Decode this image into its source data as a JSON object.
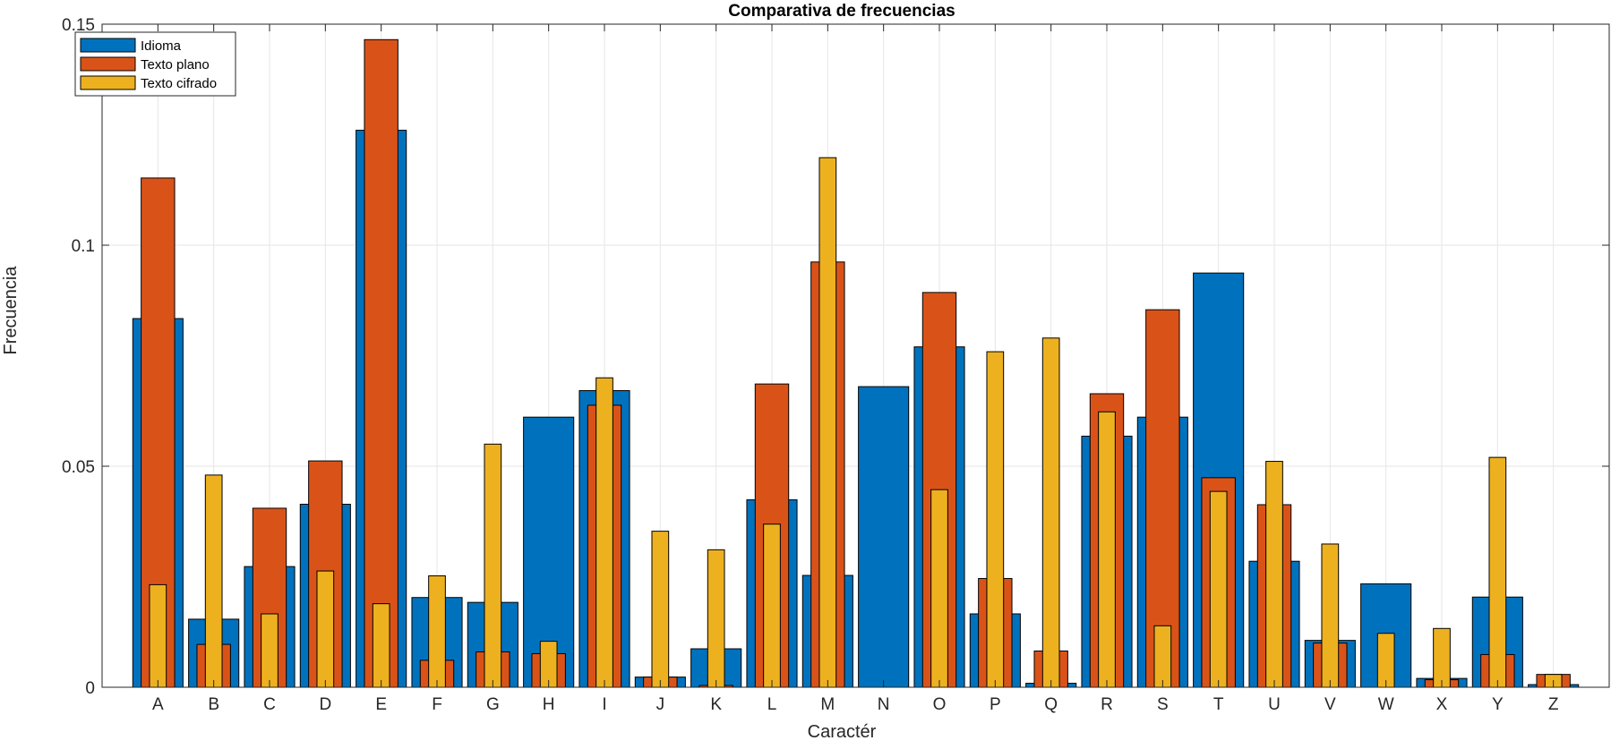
{
  "chart_data": {
    "type": "bar",
    "title": "Comparativa de frecuencias",
    "xlabel": "Caractér",
    "ylabel": "Frecuencia",
    "ylim": [
      0,
      0.15
    ],
    "yticks": [
      0,
      0.05,
      0.1,
      0.15
    ],
    "ytick_labels": [
      "0",
      "0.05",
      "0.1",
      "0.15"
    ],
    "grid": true,
    "legend_position": "top-left",
    "categories": [
      "A",
      "B",
      "C",
      "D",
      "E",
      "F",
      "G",
      "H",
      "I",
      "J",
      "K",
      "L",
      "M",
      "N",
      "O",
      "P",
      "Q",
      "R",
      "S",
      "T",
      "U",
      "V",
      "W",
      "X",
      "Y",
      "Z"
    ],
    "series": [
      {
        "name": "Idioma",
        "color": "#0072BD",
        "values": [
          0.0834,
          0.0154,
          0.0273,
          0.0414,
          0.126,
          0.0203,
          0.0192,
          0.0611,
          0.0671,
          0.0023,
          0.0087,
          0.0424,
          0.0253,
          0.068,
          0.077,
          0.0166,
          0.0009,
          0.0568,
          0.0611,
          0.0937,
          0.0285,
          0.0106,
          0.0234,
          0.002,
          0.0204,
          0.0006
        ]
      },
      {
        "name": "Texto plano",
        "color": "#D95319",
        "values": [
          0.1152,
          0.0097,
          0.0405,
          0.0512,
          0.1465,
          0.0061,
          0.008,
          0.0076,
          0.0638,
          0.0023,
          0.0004,
          0.0686,
          0.0962,
          0.0,
          0.0893,
          0.0246,
          0.0082,
          0.0664,
          0.0854,
          0.0474,
          0.0413,
          0.01,
          0.0,
          0.0017,
          0.0074,
          0.0029
        ]
      },
      {
        "name": "Texto cifrado",
        "color": "#EDB120",
        "values": [
          0.0232,
          0.048,
          0.0166,
          0.0263,
          0.0189,
          0.0252,
          0.055,
          0.0104,
          0.07,
          0.0353,
          0.0311,
          0.0369,
          0.1198,
          0.0,
          0.0447,
          0.0759,
          0.079,
          0.0623,
          0.0139,
          0.0443,
          0.0511,
          0.0324,
          0.0122,
          0.0133,
          0.052,
          0.0029
        ]
      }
    ]
  }
}
